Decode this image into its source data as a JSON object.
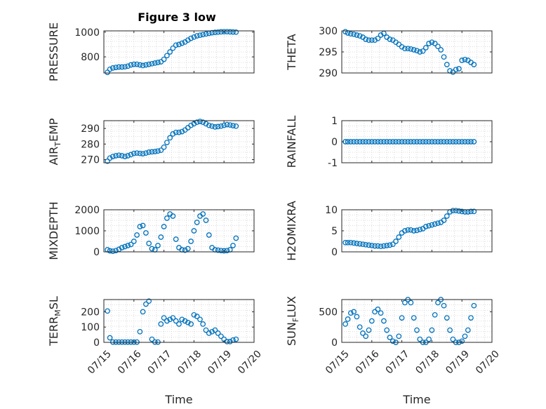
{
  "figure": {
    "title": "Figure 3 low",
    "marker_color": "#0072bd"
  },
  "chart_data": [
    {
      "type": "scatter",
      "title": "Figure 3 low",
      "ylabel": "PRESSURE",
      "xlabel": "",
      "xlim": [
        "07/15",
        "07/20"
      ],
      "ylim": [
        670,
        1010
      ],
      "yticks": [
        800,
        1000
      ],
      "xticks": [
        "07/15",
        "07/16",
        "07/17",
        "07/18",
        "07/19",
        "07/20"
      ],
      "grid": true,
      "x": [
        0.12,
        0.2,
        0.3,
        0.4,
        0.5,
        0.6,
        0.7,
        0.8,
        0.9,
        1.0,
        1.1,
        1.2,
        1.3,
        1.4,
        1.5,
        1.6,
        1.7,
        1.8,
        1.9,
        2.0,
        2.1,
        2.2,
        2.3,
        2.4,
        2.5,
        2.6,
        2.7,
        2.8,
        2.9,
        3.0,
        3.1,
        3.2,
        3.3,
        3.4,
        3.5,
        3.6,
        3.7,
        3.8,
        3.9,
        4.0,
        4.1,
        4.2,
        4.3,
        4.4
      ],
      "y": [
        675,
        700,
        710,
        715,
        718,
        718,
        720,
        725,
        735,
        740,
        740,
        735,
        730,
        735,
        740,
        745,
        750,
        755,
        760,
        780,
        810,
        840,
        870,
        895,
        900,
        910,
        920,
        935,
        950,
        960,
        970,
        975,
        980,
        985,
        990,
        995,
        998,
        1000,
        1002,
        1003,
        1003,
        1002,
        1001,
        1000
      ]
    },
    {
      "type": "scatter",
      "ylabel": "THETA",
      "xlabel": "",
      "ylim": [
        290,
        300
      ],
      "yticks": [
        290,
        295,
        300
      ],
      "xticks": [
        "07/15",
        "07/16",
        "07/17",
        "07/18",
        "07/19",
        "07/20"
      ],
      "grid": true,
      "x": [
        0.12,
        0.2,
        0.3,
        0.4,
        0.5,
        0.6,
        0.7,
        0.8,
        0.9,
        1.0,
        1.1,
        1.2,
        1.3,
        1.4,
        1.5,
        1.6,
        1.7,
        1.8,
        1.9,
        2.0,
        2.1,
        2.2,
        2.3,
        2.4,
        2.5,
        2.6,
        2.7,
        2.8,
        2.9,
        3.0,
        3.1,
        3.2,
        3.3,
        3.4,
        3.5,
        3.6,
        3.7,
        3.8,
        3.9,
        4.0,
        4.1,
        4.2,
        4.3,
        4.4
      ],
      "y": [
        299.8,
        299.5,
        299.3,
        299.2,
        299.0,
        298.8,
        298.5,
        298.0,
        297.8,
        297.8,
        297.8,
        298.2,
        299.0,
        299.4,
        298.5,
        298.0,
        297.8,
        297.3,
        296.8,
        296.2,
        295.8,
        295.8,
        295.7,
        295.5,
        295.3,
        295.0,
        295.2,
        296.0,
        297.0,
        297.3,
        297.0,
        296.3,
        295.5,
        293.8,
        292.0,
        290.5,
        290.2,
        290.8,
        291.0,
        293.0,
        293.2,
        293.0,
        292.5,
        292.0
      ]
    },
    {
      "type": "scatter",
      "ylabel": "AIR_TEMP",
      "xlabel": "",
      "ylim": [
        268,
        295
      ],
      "yticks": [
        270,
        280,
        290
      ],
      "xticks": [
        "07/15",
        "07/16",
        "07/17",
        "07/18",
        "07/19",
        "07/20"
      ],
      "grid": true,
      "x": [
        0.12,
        0.2,
        0.3,
        0.4,
        0.5,
        0.6,
        0.7,
        0.8,
        0.9,
        1.0,
        1.1,
        1.2,
        1.3,
        1.4,
        1.5,
        1.6,
        1.7,
        1.8,
        1.9,
        2.0,
        2.1,
        2.2,
        2.3,
        2.4,
        2.5,
        2.6,
        2.7,
        2.8,
        2.9,
        3.0,
        3.1,
        3.2,
        3.3,
        3.4,
        3.5,
        3.6,
        3.7,
        3.8,
        3.9,
        4.0,
        4.1,
        4.2,
        4.3,
        4.4
      ],
      "y": [
        269,
        271,
        272,
        272.5,
        272.8,
        272.5,
        272,
        272.5,
        273.2,
        274,
        274.2,
        274,
        273.8,
        274.2,
        274.8,
        275,
        275.2,
        275.5,
        276,
        278,
        281,
        284,
        286.5,
        287.5,
        287.5,
        288,
        289,
        290.5,
        292,
        293,
        294,
        294.5,
        294,
        293,
        292,
        291.5,
        291,
        291.2,
        291.5,
        292,
        292.5,
        292.2,
        291.8,
        291.5
      ]
    },
    {
      "type": "scatter",
      "ylabel": "RAINFALL",
      "xlabel": "",
      "ylim": [
        -1,
        1
      ],
      "yticks": [
        -1,
        0,
        1
      ],
      "xticks": [
        "07/15",
        "07/16",
        "07/17",
        "07/18",
        "07/19",
        "07/20"
      ],
      "grid": true,
      "x": [
        0.12,
        0.2,
        0.3,
        0.4,
        0.5,
        0.6,
        0.7,
        0.8,
        0.9,
        1.0,
        1.1,
        1.2,
        1.3,
        1.4,
        1.5,
        1.6,
        1.7,
        1.8,
        1.9,
        2.0,
        2.1,
        2.2,
        2.3,
        2.4,
        2.5,
        2.6,
        2.7,
        2.8,
        2.9,
        3.0,
        3.1,
        3.2,
        3.3,
        3.4,
        3.5,
        3.6,
        3.7,
        3.8,
        3.9,
        4.0,
        4.1,
        4.2,
        4.3,
        4.4
      ],
      "y": [
        0,
        0,
        0,
        0,
        0,
        0,
        0,
        0,
        0,
        0,
        0,
        0,
        0,
        0,
        0,
        0,
        0,
        0,
        0,
        0,
        0,
        0,
        0,
        0,
        0,
        0,
        0,
        0,
        0,
        0,
        0,
        0,
        0,
        0,
        0,
        0,
        0,
        0,
        0,
        0,
        0,
        0,
        0,
        0
      ]
    },
    {
      "type": "scatter",
      "ylabel": "MIXDEPTH",
      "xlabel": "",
      "ylim": [
        0,
        2000
      ],
      "yticks": [
        0,
        1000,
        2000
      ],
      "xticks": [
        "07/15",
        "07/16",
        "07/17",
        "07/18",
        "07/19",
        "07/20"
      ],
      "grid": true,
      "x": [
        0.12,
        0.2,
        0.3,
        0.4,
        0.5,
        0.6,
        0.7,
        0.8,
        0.9,
        1.0,
        1.1,
        1.2,
        1.3,
        1.4,
        1.5,
        1.6,
        1.7,
        1.8,
        1.9,
        2.0,
        2.1,
        2.2,
        2.3,
        2.4,
        2.5,
        2.6,
        2.7,
        2.8,
        2.9,
        3.0,
        3.1,
        3.2,
        3.3,
        3.4,
        3.5,
        3.6,
        3.7,
        3.8,
        3.9,
        4.0,
        4.1,
        4.2,
        4.3,
        4.4
      ],
      "y": [
        100,
        50,
        30,
        60,
        120,
        200,
        250,
        300,
        350,
        500,
        800,
        1200,
        1250,
        900,
        400,
        150,
        100,
        300,
        700,
        1200,
        1600,
        1800,
        1700,
        600,
        200,
        100,
        80,
        150,
        500,
        1000,
        1400,
        1700,
        1800,
        1500,
        800,
        200,
        100,
        80,
        60,
        50,
        60,
        100,
        300,
        650
      ]
    },
    {
      "type": "scatter",
      "ylabel": "H2OMIXRA",
      "xlabel": "",
      "ylim": [
        0,
        10
      ],
      "yticks": [
        0,
        5,
        10
      ],
      "xticks": [
        "07/15",
        "07/16",
        "07/17",
        "07/18",
        "07/19",
        "07/20"
      ],
      "grid": true,
      "x": [
        0.12,
        0.2,
        0.3,
        0.4,
        0.5,
        0.6,
        0.7,
        0.8,
        0.9,
        1.0,
        1.1,
        1.2,
        1.3,
        1.4,
        1.5,
        1.6,
        1.7,
        1.8,
        1.9,
        2.0,
        2.1,
        2.2,
        2.3,
        2.4,
        2.5,
        2.6,
        2.7,
        2.8,
        2.9,
        3.0,
        3.1,
        3.2,
        3.3,
        3.4,
        3.5,
        3.6,
        3.7,
        3.8,
        3.9,
        4.0,
        4.1,
        4.2,
        4.3,
        4.4
      ],
      "y": [
        2.2,
        2.2,
        2.2,
        2.1,
        2.0,
        1.9,
        1.8,
        1.7,
        1.6,
        1.5,
        1.4,
        1.4,
        1.3,
        1.4,
        1.5,
        1.6,
        1.8,
        2.5,
        3.5,
        4.5,
        5.0,
        5.2,
        5.2,
        5.0,
        5.1,
        5.3,
        5.5,
        6.0,
        6.2,
        6.4,
        6.6,
        6.8,
        7.0,
        7.5,
        8.5,
        9.5,
        9.8,
        9.8,
        9.7,
        9.6,
        9.5,
        9.5,
        9.6,
        9.6
      ]
    },
    {
      "type": "scatter",
      "ylabel": "TERR_MSL",
      "xlabel": "Time",
      "ylim": [
        0,
        280
      ],
      "yticks": [
        0,
        100,
        200
      ],
      "xticks": [
        "07/15",
        "07/16",
        "07/17",
        "07/18",
        "07/19",
        "07/20"
      ],
      "grid": true,
      "x": [
        0.12,
        0.2,
        0.3,
        0.4,
        0.5,
        0.6,
        0.7,
        0.8,
        0.9,
        1.0,
        1.1,
        1.2,
        1.3,
        1.4,
        1.5,
        1.6,
        1.7,
        1.8,
        1.9,
        2.0,
        2.1,
        2.2,
        2.3,
        2.4,
        2.5,
        2.6,
        2.7,
        2.8,
        2.9,
        3.0,
        3.1,
        3.2,
        3.3,
        3.4,
        3.5,
        3.6,
        3.7,
        3.8,
        3.9,
        4.0,
        4.1,
        4.2,
        4.3,
        4.4
      ],
      "y": [
        205,
        30,
        2,
        2,
        2,
        2,
        2,
        2,
        2,
        2,
        2,
        70,
        200,
        250,
        270,
        20,
        2,
        2,
        120,
        160,
        140,
        150,
        160,
        140,
        120,
        150,
        140,
        130,
        120,
        180,
        170,
        150,
        120,
        80,
        60,
        70,
        80,
        60,
        40,
        20,
        5,
        5,
        15,
        20
      ]
    },
    {
      "type": "scatter",
      "ylabel": "SUN_FLUX",
      "xlabel": "Time",
      "ylim": [
        0,
        700
      ],
      "yticks": [
        0,
        500
      ],
      "xticks": [
        "07/15",
        "07/16",
        "07/17",
        "07/18",
        "07/19",
        "07/20"
      ],
      "grid": true,
      "x": [
        0.12,
        0.2,
        0.3,
        0.4,
        0.5,
        0.6,
        0.7,
        0.8,
        0.9,
        1.0,
        1.1,
        1.2,
        1.3,
        1.4,
        1.5,
        1.6,
        1.7,
        1.8,
        1.9,
        2.0,
        2.1,
        2.2,
        2.3,
        2.4,
        2.5,
        2.6,
        2.7,
        2.8,
        2.9,
        3.0,
        3.1,
        3.2,
        3.3,
        3.4,
        3.5,
        3.6,
        3.7,
        3.8,
        3.9,
        4.0,
        4.1,
        4.2,
        4.3,
        4.4
      ],
      "y": [
        300,
        380,
        480,
        500,
        420,
        250,
        150,
        100,
        200,
        350,
        500,
        540,
        480,
        350,
        200,
        80,
        20,
        0,
        100,
        400,
        650,
        700,
        650,
        400,
        200,
        50,
        0,
        0,
        50,
        200,
        450,
        650,
        700,
        600,
        400,
        200,
        50,
        0,
        0,
        20,
        100,
        200,
        400,
        600
      ]
    }
  ]
}
